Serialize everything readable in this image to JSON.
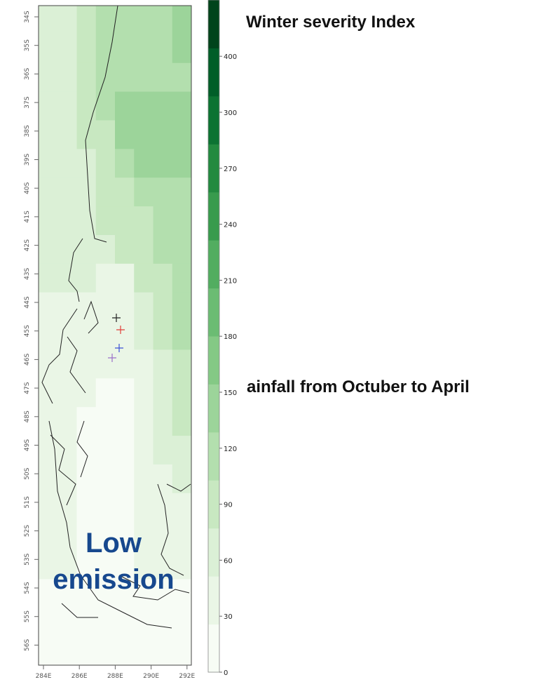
{
  "titles": {
    "winter_index": "Winter severity Index",
    "rainfall": "ainfall from Octuber to April"
  },
  "overlay": {
    "line1": "Low",
    "line2": "emission"
  },
  "map": {
    "lat_labels": [
      "34S",
      "35S",
      "36S",
      "37S",
      "38S",
      "39S",
      "40S",
      "41S",
      "42S",
      "43S",
      "44S",
      "45S",
      "46S",
      "47S",
      "48S",
      "49S",
      "50S",
      "51S",
      "52S",
      "53S",
      "54S",
      "55S",
      "56S"
    ],
    "lon_labels": [
      "284E",
      "286E",
      "288E",
      "290E",
      "292E"
    ],
    "markers": [
      {
        "color": "#222222"
      },
      {
        "color": "#e0403a"
      },
      {
        "color": "#3a4fd6"
      },
      {
        "color": "#9b6fc9"
      }
    ]
  },
  "colorbar": {
    "labels": [
      "0",
      "30",
      "60",
      "90",
      "120",
      "150",
      "180",
      "210",
      "240",
      "270",
      "300",
      "400"
    ],
    "colors": [
      "#f7fcf5",
      "#eaf6e6",
      "#dbf0d6",
      "#c8e8c1",
      "#b3dfae",
      "#9cd49a",
      "#84c985",
      "#6bbc73",
      "#52ad60",
      "#389b4d",
      "#238a3f",
      "#0c7332",
      "#005e28",
      "#00441b"
    ]
  },
  "grid": {
    "lon_min": 284,
    "lon_max": 292.5,
    "lat_min": 56.5,
    "lat_max": 33.5,
    "cells": [
      {
        "lat": 34,
        "values": [
          2,
          2,
          3,
          4,
          4,
          4,
          4,
          5
        ]
      },
      {
        "lat": 35,
        "values": [
          2,
          2,
          3,
          4,
          4,
          4,
          4,
          5
        ]
      },
      {
        "lat": 36,
        "values": [
          2,
          2,
          3,
          4,
          4,
          4,
          4,
          4
        ]
      },
      {
        "lat": 37,
        "values": [
          2,
          2,
          3,
          4,
          5,
          5,
          5,
          5
        ]
      },
      {
        "lat": 38,
        "values": [
          2,
          2,
          3,
          3,
          5,
          5,
          5,
          5
        ]
      },
      {
        "lat": 39,
        "values": [
          2,
          2,
          2,
          3,
          4,
          5,
          5,
          5
        ]
      },
      {
        "lat": 40,
        "values": [
          2,
          2,
          2,
          3,
          3,
          4,
          4,
          4
        ]
      },
      {
        "lat": 41,
        "values": [
          2,
          2,
          2,
          3,
          3,
          3,
          4,
          4
        ]
      },
      {
        "lat": 42,
        "values": [
          2,
          2,
          2,
          2,
          3,
          3,
          4,
          4
        ]
      },
      {
        "lat": 43,
        "values": [
          2,
          2,
          2,
          1,
          1,
          3,
          3,
          4
        ]
      },
      {
        "lat": 44,
        "values": [
          1,
          1,
          1,
          1,
          1,
          2,
          3,
          4
        ]
      },
      {
        "lat": 45,
        "values": [
          1,
          1,
          1,
          1,
          1,
          2,
          3,
          4
        ]
      },
      {
        "lat": 46,
        "values": [
          1,
          1,
          1,
          1,
          1,
          1,
          2,
          3
        ]
      },
      {
        "lat": 47,
        "values": [
          1,
          1,
          1,
          0,
          0,
          1,
          2,
          3
        ]
      },
      {
        "lat": 48,
        "values": [
          1,
          1,
          0,
          0,
          0,
          1,
          2,
          3
        ]
      },
      {
        "lat": 49,
        "values": [
          1,
          1,
          0,
          0,
          0,
          1,
          2,
          2
        ]
      },
      {
        "lat": 50,
        "values": [
          1,
          1,
          0,
          0,
          0,
          1,
          1,
          2
        ]
      },
      {
        "lat": 51,
        "values": [
          1,
          1,
          0,
          0,
          0,
          1,
          1,
          1
        ]
      },
      {
        "lat": 52,
        "values": [
          1,
          1,
          0,
          0,
          0,
          1,
          1,
          1
        ]
      },
      {
        "lat": 53,
        "values": [
          1,
          1,
          0,
          0,
          0,
          1,
          1,
          1
        ]
      },
      {
        "lat": 54,
        "values": [
          0,
          0,
          0,
          0,
          0,
          0,
          0,
          0
        ]
      },
      {
        "lat": 55,
        "values": [
          0,
          0,
          0,
          0,
          0,
          0,
          0,
          0
        ]
      },
      {
        "lat": 56,
        "values": [
          0,
          0,
          0,
          0,
          0,
          0,
          0,
          0
        ]
      }
    ]
  }
}
